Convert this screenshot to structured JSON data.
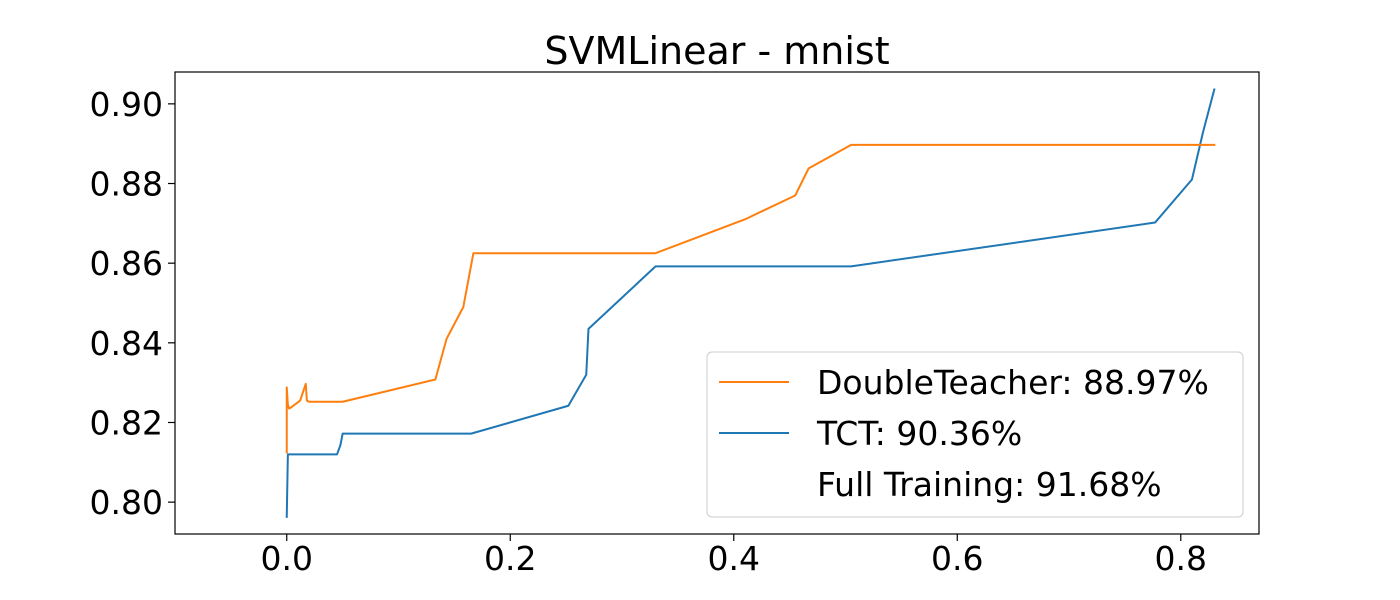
{
  "chart_data": {
    "type": "line",
    "title": "SVMLinear - mnist",
    "xlabel": "",
    "ylabel": "",
    "xlim": [
      -0.1,
      0.87
    ],
    "ylim": [
      0.792,
      0.908
    ],
    "xticks": [
      0.0,
      0.2,
      0.4,
      0.6,
      0.8
    ],
    "xtick_labels": [
      "0.0",
      "0.2",
      "0.4",
      "0.6",
      "0.8"
    ],
    "yticks": [
      0.8,
      0.82,
      0.84,
      0.86,
      0.88,
      0.9
    ],
    "ytick_labels": [
      "0.80",
      "0.82",
      "0.84",
      "0.86",
      "0.88",
      "0.90"
    ],
    "grid": false,
    "legend_position": "lower-right",
    "series": [
      {
        "name": "DoubleTeacher: 88.97%",
        "color": "#ff7f0e",
        "x": [
          0.0,
          0.0,
          0.001,
          0.002,
          0.004,
          0.012,
          0.017,
          0.018,
          0.02,
          0.05,
          0.133,
          0.143,
          0.158,
          0.167,
          0.33,
          0.41,
          0.455,
          0.467,
          0.505,
          0.83
        ],
        "y": [
          0.8125,
          0.8288,
          0.8245,
          0.8235,
          0.8238,
          0.8255,
          0.8297,
          0.8255,
          0.8252,
          0.8252,
          0.8308,
          0.841,
          0.849,
          0.8625,
          0.8625,
          0.871,
          0.877,
          0.8838,
          0.8897,
          0.8897
        ]
      },
      {
        "name": "TCT: 90.36%",
        "color": "#1f77b4",
        "x": [
          0.0,
          0.001,
          0.045,
          0.048,
          0.05,
          0.052,
          0.165,
          0.252,
          0.268,
          0.27,
          0.33,
          0.505,
          0.777,
          0.81,
          0.82,
          0.83
        ],
        "y": [
          0.7963,
          0.812,
          0.812,
          0.8143,
          0.8172,
          0.8172,
          0.8172,
          0.8242,
          0.832,
          0.8435,
          0.8592,
          0.8592,
          0.8702,
          0.881,
          0.893,
          0.9036
        ]
      },
      {
        "name": "Full Training: 91.68%",
        "color": "none",
        "x": [],
        "y": []
      }
    ]
  }
}
